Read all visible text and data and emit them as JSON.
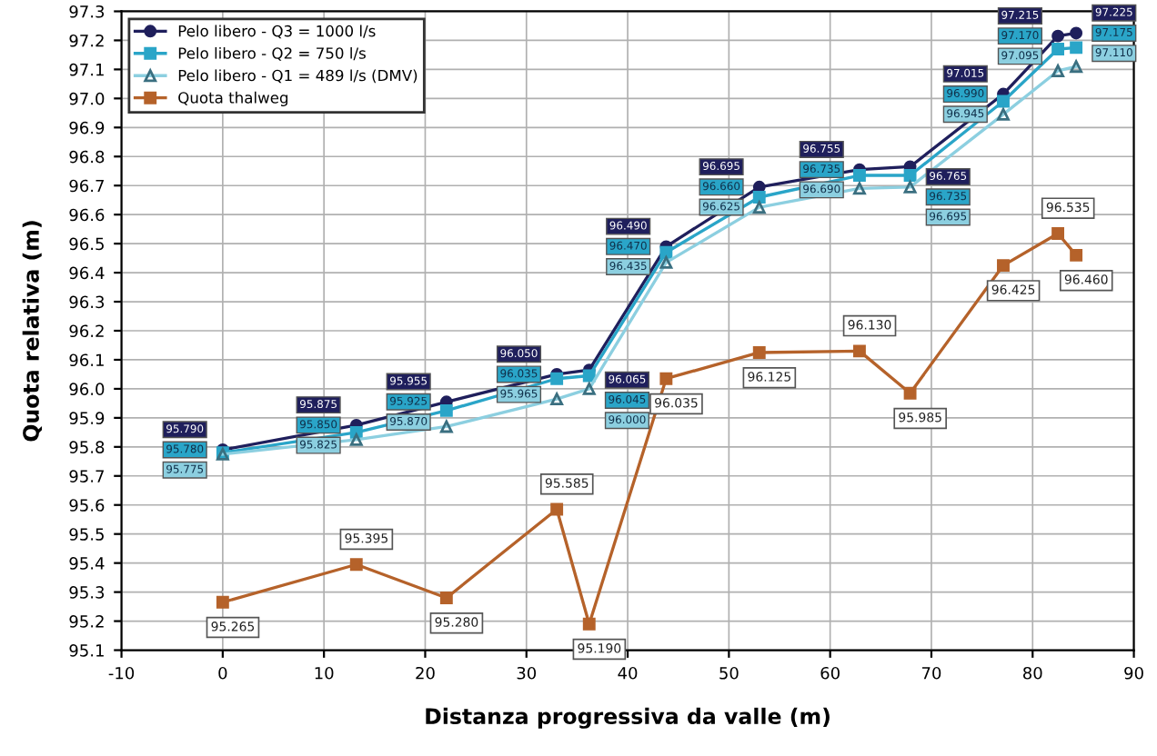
{
  "chart_data": {
    "type": "line",
    "xlabel": "Distanza progressiva da valle (m)",
    "ylabel": "Quota relativa (m)",
    "x": [
      0,
      13.2,
      22.1,
      33.0,
      36.2,
      43.8,
      53.0,
      62.9,
      67.9,
      77.1,
      82.5,
      84.3
    ],
    "series": [
      {
        "name": "Pelo libero - Q3 = 1000 l/s",
        "color": "#1f1f5c",
        "marker": "circle",
        "values": [
          95.79,
          95.875,
          95.955,
          96.05,
          96.065,
          96.49,
          96.695,
          96.755,
          96.765,
          97.015,
          97.215,
          97.225
        ],
        "value_labels": [
          "95.790",
          "95.875",
          "95.955",
          "96.050",
          "96.065",
          "96.490",
          "96.695",
          "96.755",
          "96.765",
          "97.015",
          "97.215",
          "97.225"
        ]
      },
      {
        "name": "Pelo libero - Q2 = 750 l/s",
        "color": "#2aa5c8",
        "marker": "square",
        "values": [
          95.78,
          95.85,
          95.925,
          96.035,
          96.045,
          96.47,
          96.66,
          96.735,
          96.735,
          96.99,
          97.17,
          97.175
        ],
        "value_labels": [
          "95.780",
          "95.850",
          "95.925",
          "96.035",
          "96.045",
          "96.470",
          "96.660",
          "96.735",
          "96.735",
          "96.990",
          "97.170",
          "97.175"
        ]
      },
      {
        "name": "Pelo libero - Q1 = 489 l/s (DMV)",
        "color": "#8ccfe0",
        "marker": "triangle",
        "values": [
          95.775,
          95.825,
          95.87,
          95.965,
          96.0,
          96.435,
          96.625,
          96.69,
          96.695,
          96.945,
          97.095,
          97.11
        ],
        "value_labels": [
          "95.775",
          "95.825",
          "95.870",
          "95.965",
          "96.000",
          "96.435",
          "96.625",
          "96.690",
          "96.695",
          "96.945",
          "97.095",
          "97.110"
        ]
      },
      {
        "name": "Quota thalweg",
        "color": "#b5622a",
        "marker": "square",
        "values": [
          95.265,
          95.395,
          95.28,
          95.585,
          95.19,
          96.035,
          96.125,
          96.13,
          95.985,
          96.425,
          96.535,
          96.46
        ],
        "value_labels": [
          "95.265",
          "95.395",
          "95.280",
          "95.585",
          "95.190",
          "96.035",
          "96.125",
          "96.130",
          "95.985",
          "96.425",
          "96.535",
          "96.460"
        ]
      }
    ],
    "xlim": [
      -10,
      90
    ],
    "xticks": [
      -10,
      0,
      10,
      20,
      30,
      40,
      50,
      60,
      70,
      80,
      90
    ],
    "ylim": [
      95.1,
      97.3
    ],
    "yticks": [
      95.1,
      95.2,
      95.3,
      95.4,
      95.5,
      95.6,
      95.7,
      95.8,
      95.9,
      {
        "value": 96,
        "label": "96.0"
      },
      96.1,
      96.2,
      96.3,
      96.4,
      96.5,
      96.6,
      96.7,
      96.8,
      96.9,
      {
        "value": 97,
        "label": "97.0"
      },
      97.1,
      97.2,
      97.3
    ],
    "grid": true,
    "legend": "top left",
    "line_style": "solid"
  }
}
